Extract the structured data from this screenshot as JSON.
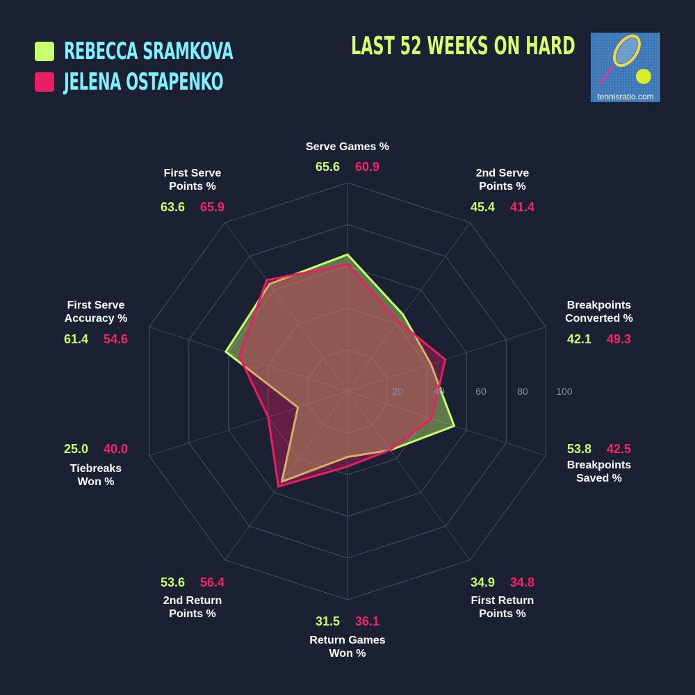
{
  "legend": [
    {
      "name": "REBECCA SRAMKOVA",
      "color": "#c8ff6e"
    },
    {
      "name": "JELENA OSTAPENKO",
      "color": "#e91e63"
    }
  ],
  "title": "LAST 52 WEEKS ON HARD",
  "logo": {
    "text": "tennisratio.com"
  },
  "chart_data": {
    "type": "radar",
    "title": "LAST 52 WEEKS ON HARD",
    "range": [
      0,
      100
    ],
    "ticks": [
      "20",
      "40",
      "60",
      "80",
      "100"
    ],
    "categories": [
      {
        "line1": "Serve Games %",
        "line2": ""
      },
      {
        "line1": "2nd Serve",
        "line2": "Points %"
      },
      {
        "line1": "Breakpoints",
        "line2": "Converted %"
      },
      {
        "line1": "Breakpoints",
        "line2": "Saved %"
      },
      {
        "line1": "First Return",
        "line2": "Points %"
      },
      {
        "line1": "Return Games",
        "line2": "Won %"
      },
      {
        "line1": "2nd Return",
        "line2": "Points %"
      },
      {
        "line1": "Tiebreaks",
        "line2": "Won %"
      },
      {
        "line1": "First Serve",
        "line2": "Accuracy %"
      },
      {
        "line1": "First Serve",
        "line2": "Points %"
      }
    ],
    "series": [
      {
        "name": "REBECCA SRAMKOVA",
        "color": "#c8ff6e",
        "values": [
          "65.6",
          "45.4",
          "42.1",
          "53.8",
          "34.9",
          "31.5",
          "53.6",
          "25.0",
          "61.4",
          "63.6"
        ]
      },
      {
        "name": "JELENA OSTAPENKO",
        "color": "#e91e63",
        "values": [
          "60.9",
          "41.4",
          "49.3",
          "42.5",
          "34.8",
          "36.1",
          "56.4",
          "40.0",
          "54.6",
          "65.9"
        ]
      }
    ],
    "grid": true
  }
}
